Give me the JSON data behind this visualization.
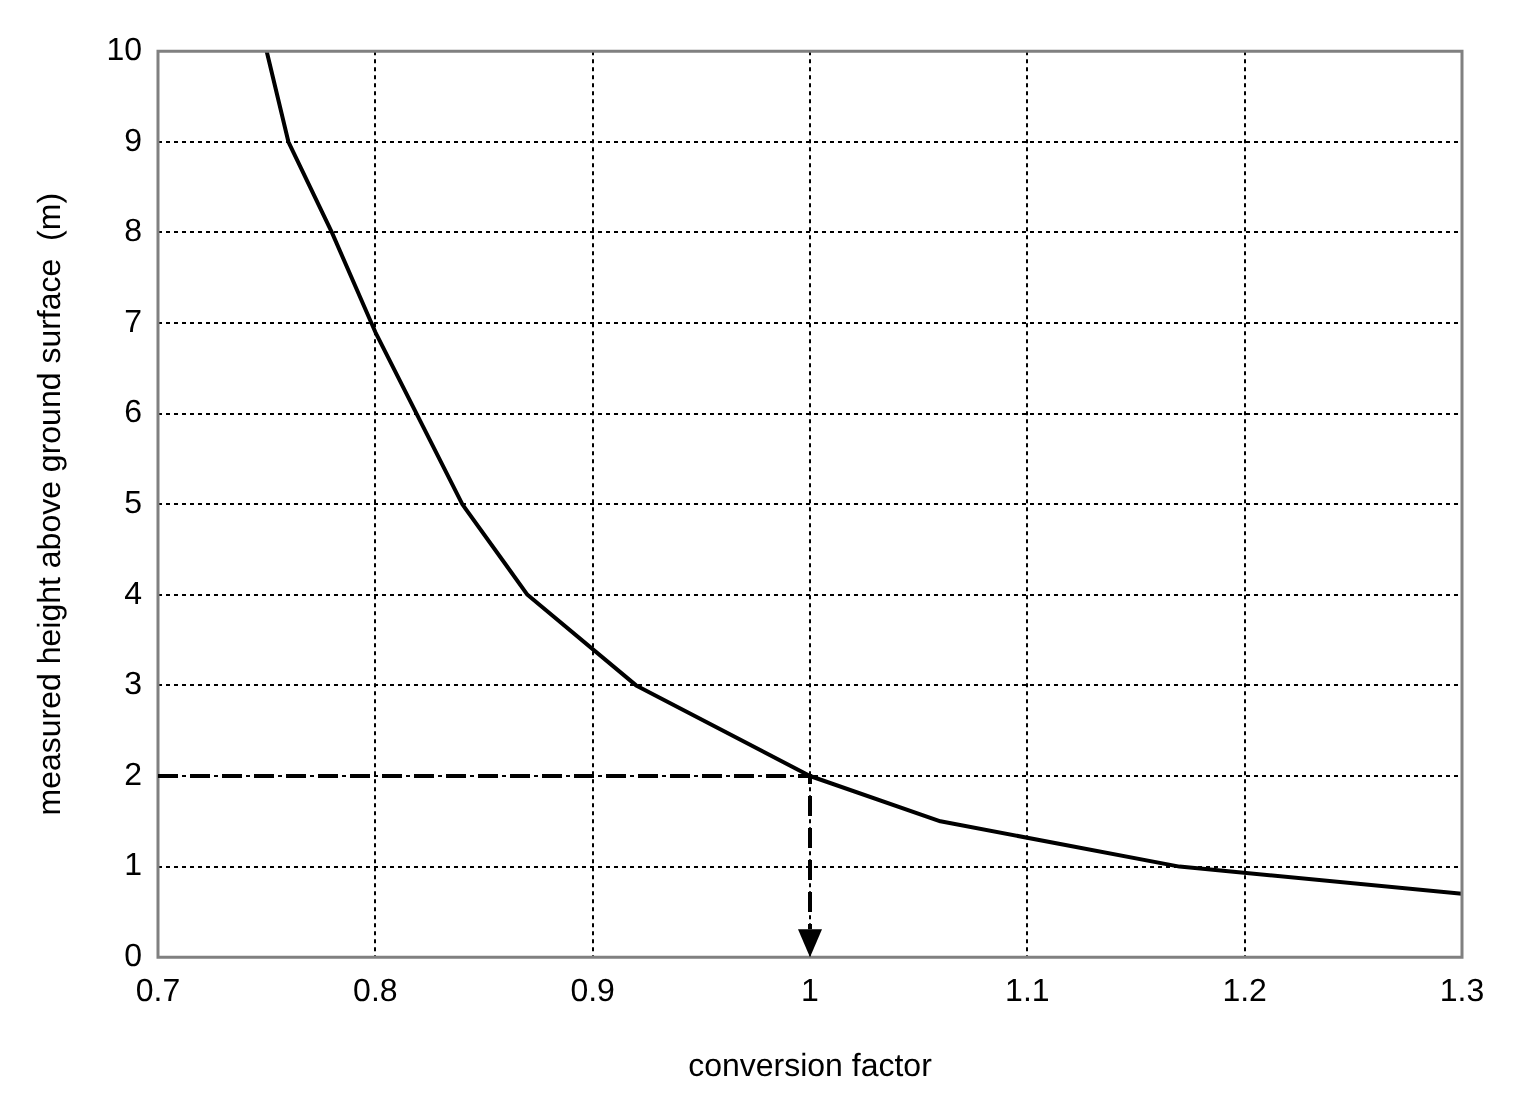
{
  "chart_data": {
    "type": "line",
    "xlabel": "conversion factor",
    "ylabel": "measured height above ground surface  (m)",
    "xlim": [
      0.7,
      1.3
    ],
    "xticks": [
      0.7,
      0.8,
      0.9,
      1,
      1.1,
      1.2,
      1.3
    ],
    "ylim": [
      0,
      10
    ],
    "yticks": [
      0,
      1,
      2,
      3,
      4,
      5,
      6,
      7,
      8,
      9,
      10
    ],
    "grid": true,
    "legend": false,
    "marker": "none",
    "series": [
      {
        "x": [
          0.75,
          0.76,
          0.78,
          0.8,
          0.84,
          0.87,
          0.92,
          1.0,
          1.06,
          1.17,
          1.3
        ],
        "values": [
          10,
          9,
          8,
          6.9,
          5,
          4,
          3,
          2,
          1.5,
          1,
          0.7
        ],
        "color": "#000000",
        "line_style": "solid"
      }
    ]
  }
}
